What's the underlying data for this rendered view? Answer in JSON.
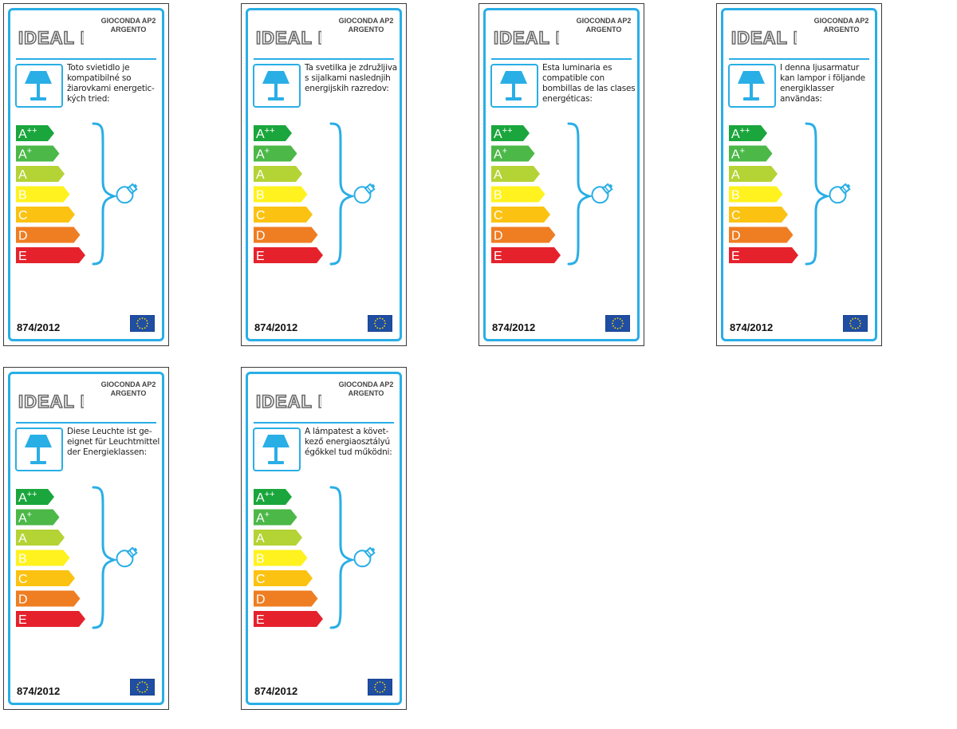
{
  "labels": [
    {
      "brand": "IDEAL LUX",
      "model": "GIOCONDA AP2",
      "variant": "ARGENTO",
      "description": [
        "Toto svietidlo je",
        "kompatibilné so",
        "žiarovkami energetic-",
        "kých tried:"
      ],
      "regulation": "874/2012"
    },
    {
      "brand": "IDEAL LUX",
      "model": "GIOCONDA AP2",
      "variant": "ARGENTO",
      "description": [
        "Ta svetilka je združljiva",
        "s sijalkami naslednjih",
        "energijskih razredov:"
      ],
      "regulation": "874/2012"
    },
    {
      "brand": "IDEAL LUX",
      "model": "GIOCONDA AP2",
      "variant": "ARGENTO",
      "description": [
        "Esta luminaria es",
        "compatible con",
        "bombillas de las clases",
        "energéticas:"
      ],
      "regulation": "874/2012"
    },
    {
      "brand": "IDEAL LUX",
      "model": "GIOCONDA AP2",
      "variant": "ARGENTO",
      "description": [
        "I denna ljusarmatur",
        "kan lampor i följande",
        "energiklasser",
        "användas:"
      ],
      "regulation": "874/2012"
    },
    {
      "brand": "IDEAL LUX",
      "model": "GIOCONDA AP2",
      "variant": "ARGENTO",
      "description": [
        "Diese Leuchte ist ge-",
        "eignet für Leuchtmittel",
        "der Energieklassen:"
      ],
      "regulation": "874/2012"
    },
    {
      "brand": "IDEAL LUX",
      "model": "GIOCONDA AP2",
      "variant": "ARGENTO",
      "description": [
        "A lámpatest a követ-",
        "kező energiaosztályú",
        "égőkkel tud működni:"
      ],
      "regulation": "874/2012"
    }
  ],
  "energy_classes": [
    {
      "main": "A",
      "sup": "++",
      "color": "#1aa63c"
    },
    {
      "main": "A",
      "sup": "+",
      "color": "#4bb848"
    },
    {
      "main": "A",
      "sup": "",
      "color": "#b4d335"
    },
    {
      "main": "B",
      "sup": "",
      "color": "#fff21e"
    },
    {
      "main": "C",
      "sup": "",
      "color": "#fbc212"
    },
    {
      "main": "D",
      "sup": "",
      "color": "#ef7d22"
    },
    {
      "main": "E",
      "sup": "",
      "color": "#e5222c"
    }
  ],
  "colors": {
    "frame": "#29aee6",
    "eu_blue": "#1f4ea2",
    "eu_star": "#ffdd00"
  },
  "icons": {
    "lamp": "table-lamp-icon",
    "bulb": "light-bulb-icon",
    "flag": "eu-flag-icon"
  }
}
